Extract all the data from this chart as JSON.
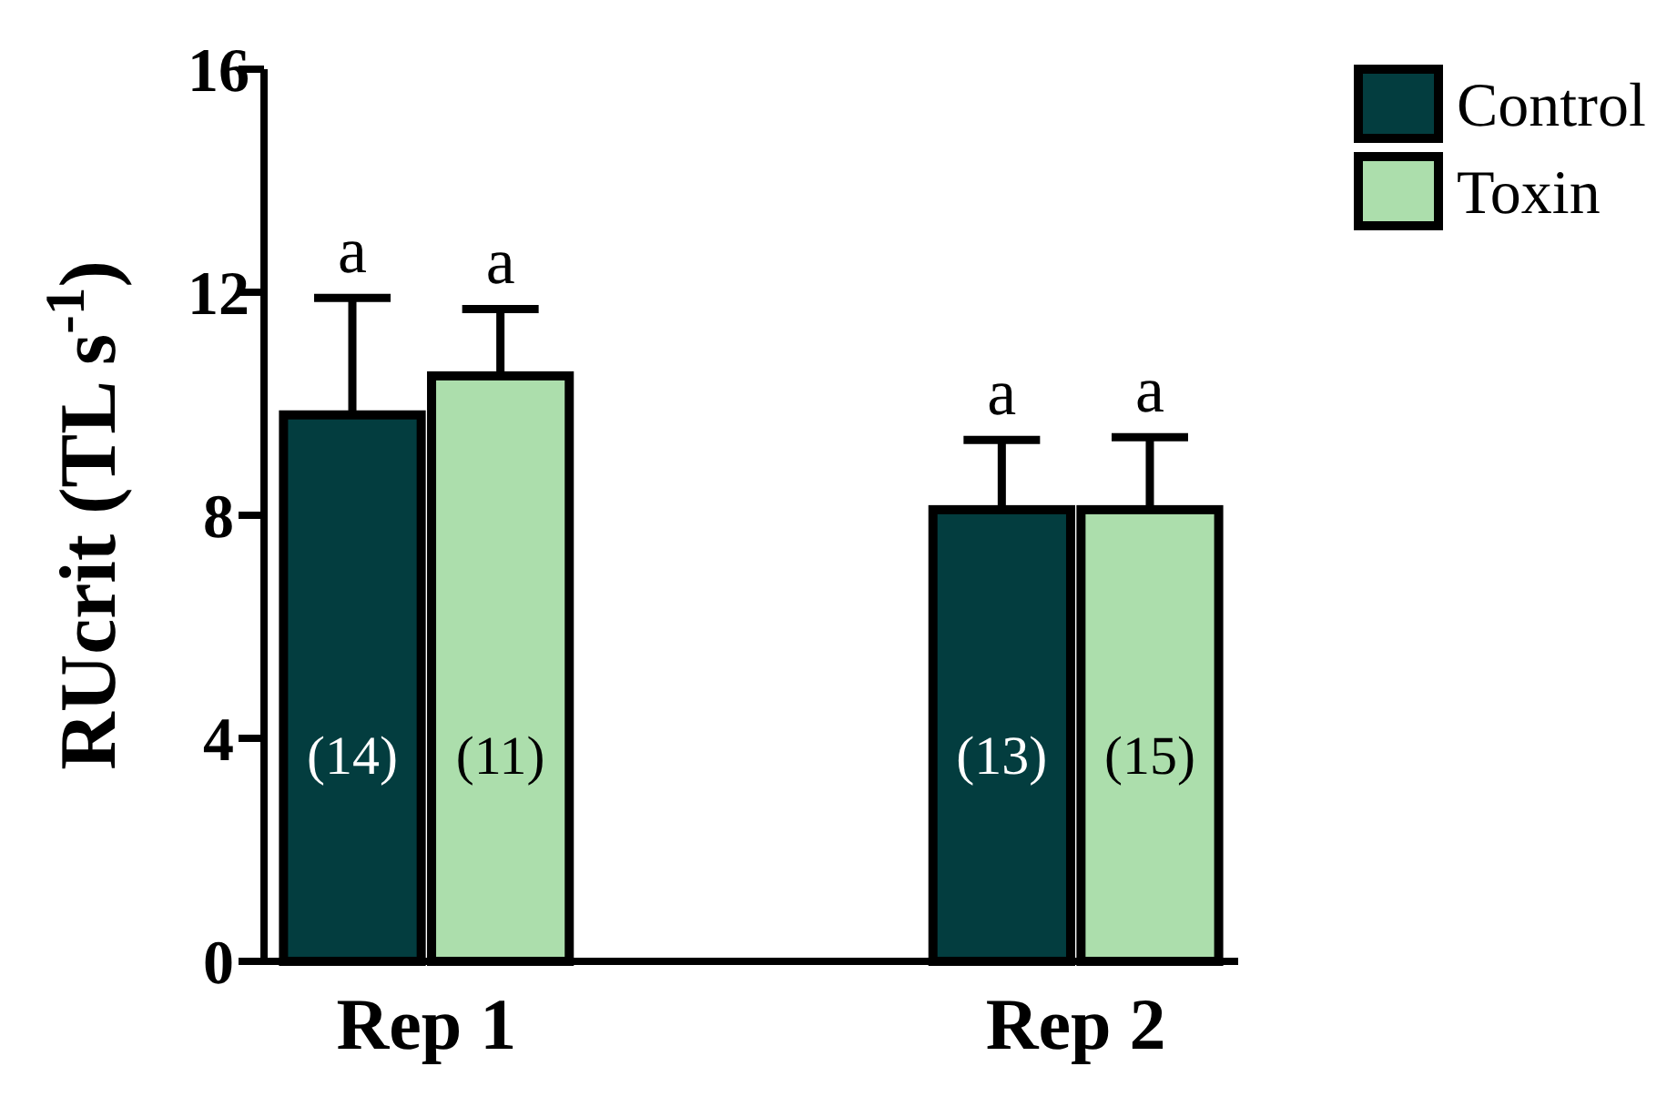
{
  "chart_data": {
    "type": "bar",
    "ylabel": "RUcrit (TL s$^{-1}$)",
    "categories": [
      "Rep 1",
      "Rep 2"
    ],
    "series": [
      {
        "name": "Control",
        "color": "#033d3f",
        "values": [
          9.8,
          8.1
        ],
        "errors": [
          [
            9.8,
            11.9
          ],
          [
            8.1,
            9.35
          ]
        ]
      },
      {
        "name": "Toxin",
        "color": "#acdeac",
        "values": [
          10.5,
          8.1
        ],
        "errors": [
          [
            10.5,
            11.7
          ],
          [
            8.1,
            9.4
          ]
        ]
      }
    ],
    "ylim": [
      0,
      16
    ],
    "yticks": [
      0,
      4,
      8,
      12,
      16
    ],
    "legend": "top right",
    "annotations": [
      "a",
      "a",
      "a",
      "a",
      "(14)",
      "(11)",
      "(13)",
      "(15)"
    ]
  }
}
